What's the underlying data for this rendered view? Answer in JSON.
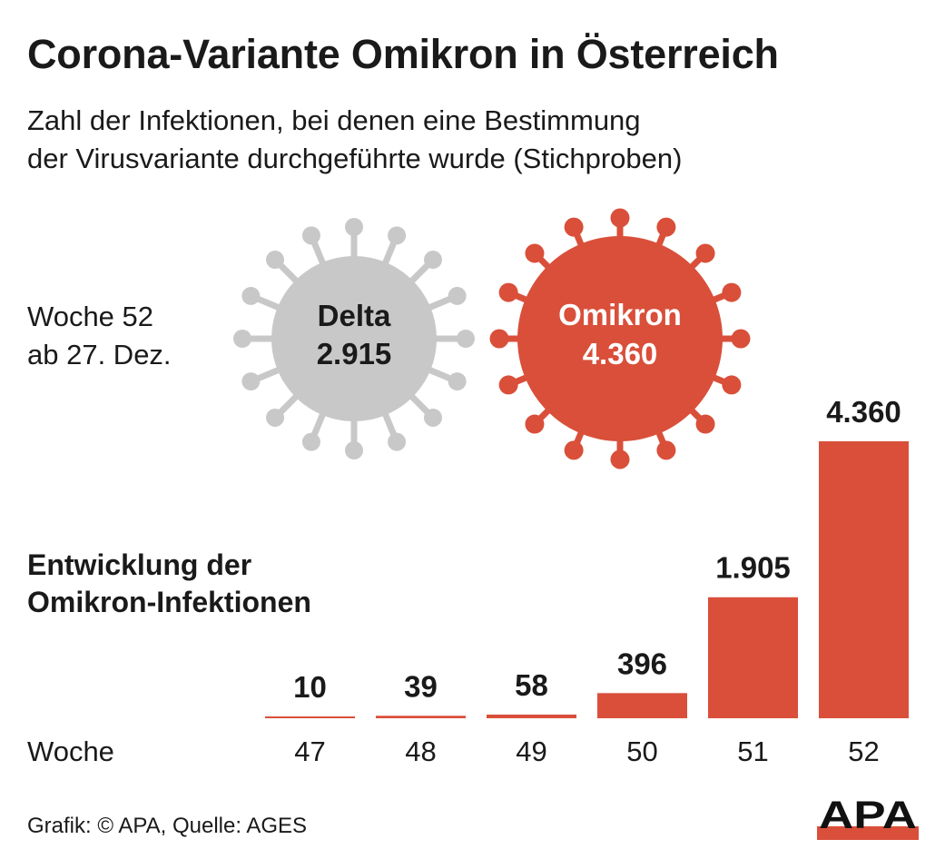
{
  "title": "Corona-Variante Omikron in Österreich",
  "subtitle": {
    "line1": "Zahl der Infektionen, bei denen eine Bestimmung",
    "line2": "der Virusvariante durchgeführte wurde (Stichproben)"
  },
  "week_label": {
    "line1": "Woche 52",
    "line2": "ab 27. Dez."
  },
  "viruses": [
    {
      "label": "Delta",
      "value": "2.915",
      "color": "#c8c8c8",
      "text_color": "#1a1a1a"
    },
    {
      "label": "Omikron",
      "value": "4.360",
      "color": "#d94f3a",
      "text_color": "#ffffff"
    }
  ],
  "section_title": {
    "line1": "Entwicklung der",
    "line2": "Omikron-Infektionen"
  },
  "chart_data": {
    "type": "bar",
    "xlabel": "Woche",
    "categories": [
      "47",
      "48",
      "49",
      "50",
      "51",
      "52"
    ],
    "values": [
      10,
      39,
      58,
      396,
      1905,
      4360
    ],
    "value_labels": [
      "10",
      "39",
      "58",
      "396",
      "1.905",
      "4.360"
    ],
    "bar_color": "#d94f3a"
  },
  "source": "Grafik: © APA, Quelle: AGES",
  "logo": "APA",
  "colors": {
    "accent": "#d94f3a",
    "gray": "#c8c8c8",
    "text": "#1a1a1a"
  }
}
